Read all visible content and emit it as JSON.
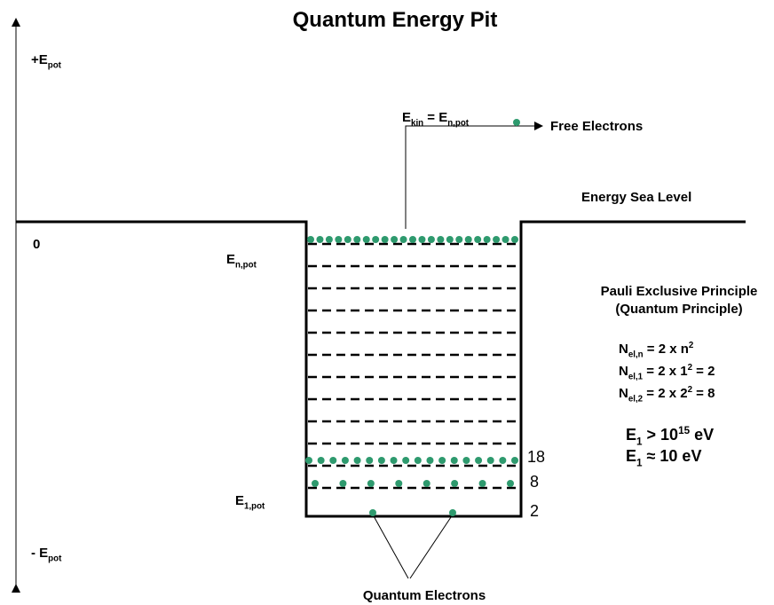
{
  "title": "Quantum Energy Pit",
  "axis": {
    "top": [
      {
        "t": "+E"
      },
      {
        "sub": "pot"
      }
    ],
    "zero": "0",
    "bottom": [
      {
        "t": "- E"
      },
      {
        "sub": "pot"
      }
    ]
  },
  "levels": {
    "upper": [
      {
        "t": "E"
      },
      {
        "sub": "n,pot"
      }
    ],
    "lowest": [
      {
        "t": "E"
      },
      {
        "sub": "1,pot"
      }
    ],
    "electron_counts": [
      18,
      8,
      2
    ]
  },
  "kinetic": [
    {
      "t": "E"
    },
    {
      "sub": "kin"
    },
    {
      "t": " = E"
    },
    {
      "sub": "n,pot"
    }
  ],
  "free_electrons": "Free Electrons",
  "sea_level": "Energy Sea Level",
  "principle": {
    "title": "Pauli Exclusive Principle",
    "subtitle": "(Quantum Principle)",
    "formulas": [
      [
        {
          "t": "N"
        },
        {
          "sub": "el,n"
        },
        {
          "t": " = 2 x n"
        },
        {
          "sup": "2"
        }
      ],
      [
        {
          "t": "N"
        },
        {
          "sub": "el,1"
        },
        {
          "t": " = 2 x 1"
        },
        {
          "sup": "2"
        },
        {
          "t": " = 2"
        }
      ],
      [
        {
          "t": "N"
        },
        {
          "sub": "el,2"
        },
        {
          "t": " = 2 x 2"
        },
        {
          "sup": "2"
        },
        {
          "t": " = 8"
        }
      ]
    ]
  },
  "energies": [
    [
      {
        "t": "E"
      },
      {
        "sub": "1"
      },
      {
        "t": " > 10"
      },
      {
        "sup": "15"
      },
      {
        "t": " eV"
      }
    ],
    [
      {
        "t": "E"
      },
      {
        "sub": "1"
      },
      {
        "t": " ≈ 10 eV"
      }
    ]
  ],
  "quantum_electrons": "Quantum Electrons"
}
